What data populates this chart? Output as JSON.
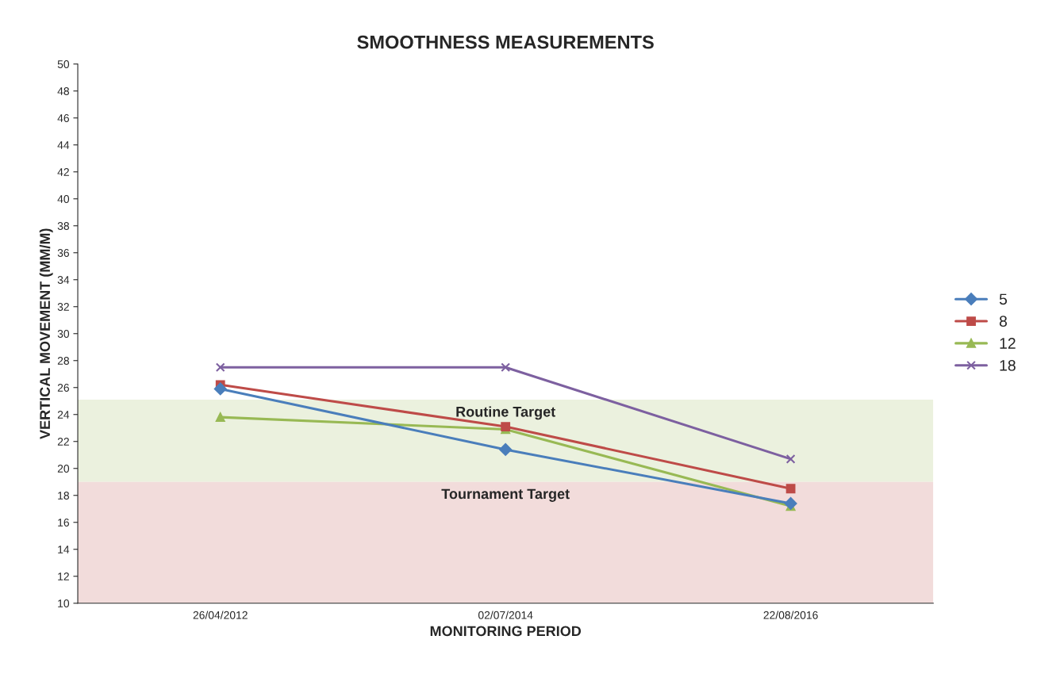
{
  "chart_data": {
    "type": "line",
    "title": "SMOOTHNESS MEASUREMENTS",
    "xlabel": "MONITORING PERIOD",
    "ylabel": "VERTICAL MOVEMENT (MM/M)",
    "categories": [
      "26/04/2012",
      "02/07/2014",
      "22/08/2016"
    ],
    "series": [
      {
        "name": "5",
        "color": "#4a7ebb",
        "marker": "diamond",
        "values": [
          25.9,
          21.4,
          17.4
        ]
      },
      {
        "name": "8",
        "color": "#be4b48",
        "marker": "square",
        "values": [
          26.2,
          23.1,
          18.5
        ]
      },
      {
        "name": "12",
        "color": "#98b954",
        "marker": "triangle",
        "values": [
          23.8,
          22.9,
          17.2
        ]
      },
      {
        "name": "18",
        "color": "#7d60a0",
        "marker": "cross",
        "values": [
          27.5,
          27.5,
          20.7
        ]
      }
    ],
    "bands": [
      {
        "axis": "y",
        "from": 19,
        "to": 25.1,
        "label": "Routine Target",
        "color": "#ebf1de"
      },
      {
        "axis": "y",
        "from": 10,
        "to": 19,
        "label": "Tournament Target",
        "color": "#f2dcdb"
      }
    ],
    "ylim": [
      10,
      50
    ],
    "yticks": [
      10,
      12,
      14,
      16,
      18,
      20,
      22,
      24,
      26,
      28,
      30,
      32,
      34,
      36,
      38,
      40,
      42,
      44,
      46,
      48,
      50
    ],
    "grid": false,
    "legend": "right",
    "line_style": "solid"
  }
}
